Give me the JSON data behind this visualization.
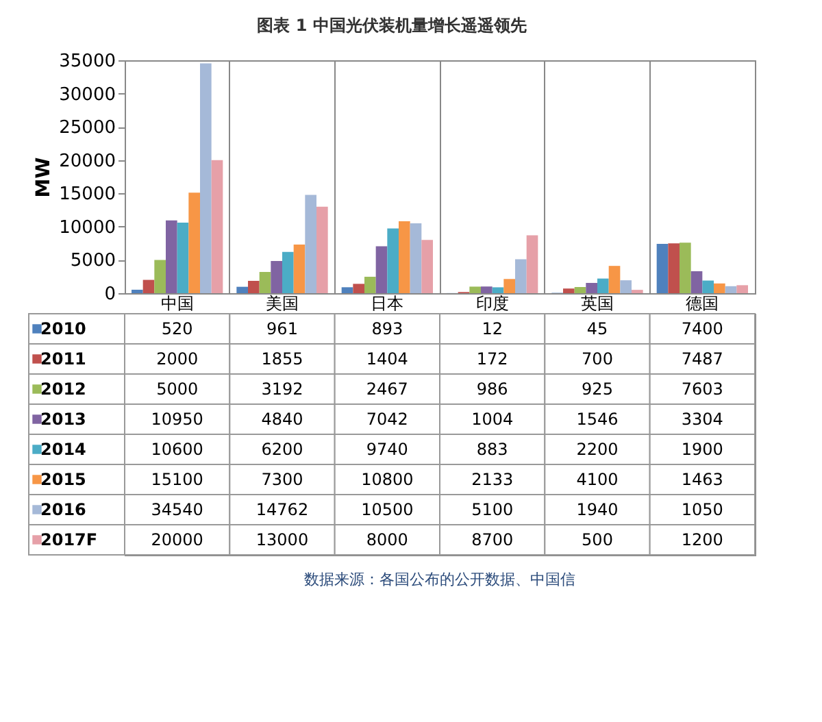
{
  "chart_data": {
    "type": "bar",
    "title": "图表 1 中国光伏装机量增长遥遥领先",
    "ylabel": "MW",
    "categories": [
      "中国",
      "美国",
      "日本",
      "印度",
      "英国",
      "德国"
    ],
    "series": [
      {
        "name": "2010",
        "color": "#4f81bd",
        "values": [
          520,
          961,
          893,
          12,
          45,
          7400
        ]
      },
      {
        "name": "2011",
        "color": "#c0504d",
        "values": [
          2000,
          1855,
          1404,
          172,
          700,
          7487
        ]
      },
      {
        "name": "2012",
        "color": "#9bbb59",
        "values": [
          5000,
          3192,
          2467,
          986,
          925,
          7603
        ]
      },
      {
        "name": "2013",
        "color": "#8064a2",
        "values": [
          10950,
          4840,
          7042,
          1004,
          1546,
          3304
        ]
      },
      {
        "name": "2014",
        "color": "#4bacc6",
        "values": [
          10600,
          6200,
          9740,
          883,
          2200,
          1900
        ]
      },
      {
        "name": "2015",
        "color": "#f79646",
        "values": [
          15100,
          7300,
          10800,
          2133,
          4100,
          1463
        ]
      },
      {
        "name": "2016",
        "color": "#a5b9d8",
        "values": [
          34540,
          14762,
          10500,
          5100,
          1940,
          1050
        ]
      },
      {
        "name": "2017F",
        "color": "#e6a0a8",
        "values": [
          20000,
          13000,
          8000,
          8700,
          500,
          1200
        ]
      }
    ],
    "ylim": [
      0,
      35000
    ],
    "yticks": [
      0,
      5000,
      10000,
      15000,
      20000,
      25000,
      30000,
      35000
    ],
    "grid": false,
    "legend": "bottom left",
    "data_labels": true,
    "annotations": [
      "数据来源：各国公布的公开数据、中国信"
    ]
  }
}
